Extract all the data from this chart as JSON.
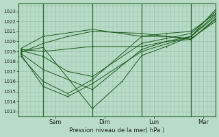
{
  "title": "",
  "xlabel": "Pression niveau de la mer( hPa )",
  "bg_color": "#b8dcc8",
  "grid_color": "#90b8a0",
  "line_color": "#1a5a1a",
  "vline_color": "#2a6a2a",
  "ylim": [
    1012.5,
    1023.8
  ],
  "xlim": [
    0.0,
    4.0
  ],
  "yticks": [
    1013,
    1014,
    1015,
    1016,
    1017,
    1018,
    1019,
    1020,
    1021,
    1022,
    1023
  ],
  "xtick_positions": [
    0.75,
    1.75,
    2.75,
    3.75
  ],
  "xtick_labels": [
    "Sam",
    "Dim",
    "Lun",
    "Mar"
  ],
  "vline_positions": [
    0.5,
    1.5,
    2.5,
    3.5
  ],
  "lines": [
    {
      "x": [
        0.05,
        0.5,
        1.5,
        2.1,
        2.5,
        3.0,
        3.5,
        4.0
      ],
      "y": [
        1019.0,
        1019.4,
        1013.3,
        1016.0,
        1018.6,
        1019.5,
        1020.5,
        1023.2
      ]
    },
    {
      "x": [
        0.05,
        0.5,
        1.5,
        2.5,
        3.0,
        3.5,
        4.0
      ],
      "y": [
        1018.8,
        1017.2,
        1015.2,
        1019.2,
        1020.0,
        1020.5,
        1022.7
      ]
    },
    {
      "x": [
        0.05,
        0.5,
        1.0,
        1.5,
        2.5,
        3.0,
        3.5,
        4.0
      ],
      "y": [
        1018.5,
        1016.0,
        1014.8,
        1016.2,
        1020.5,
        1020.8,
        1021.0,
        1022.8
      ]
    },
    {
      "x": [
        0.05,
        0.5,
        1.0,
        1.5,
        2.5,
        3.0,
        3.5,
        4.0
      ],
      "y": [
        1019.1,
        1018.5,
        1017.0,
        1016.5,
        1019.8,
        1020.3,
        1020.8,
        1023.0
      ]
    },
    {
      "x": [
        0.05,
        0.5,
        1.5,
        2.5,
        3.0,
        3.5,
        4.0
      ],
      "y": [
        1019.3,
        1020.5,
        1021.2,
        1020.5,
        1020.5,
        1020.2,
        1022.3
      ]
    },
    {
      "x": [
        0.05,
        0.5,
        1.0,
        1.5,
        2.5,
        3.0,
        3.5,
        4.0
      ],
      "y": [
        1018.9,
        1019.8,
        1020.5,
        1021.0,
        1020.8,
        1020.5,
        1020.3,
        1022.0
      ]
    },
    {
      "x": [
        0.05,
        0.5,
        1.5,
        2.5,
        3.0,
        3.5,
        4.0
      ],
      "y": [
        1019.2,
        1019.0,
        1019.5,
        1019.5,
        1020.0,
        1020.2,
        1022.2
      ]
    },
    {
      "x": [
        0.05,
        0.5,
        1.0,
        1.5,
        2.5,
        3.5,
        4.0
      ],
      "y": [
        1018.7,
        1015.5,
        1014.5,
        1015.8,
        1019.0,
        1020.5,
        1022.5
      ]
    }
  ]
}
